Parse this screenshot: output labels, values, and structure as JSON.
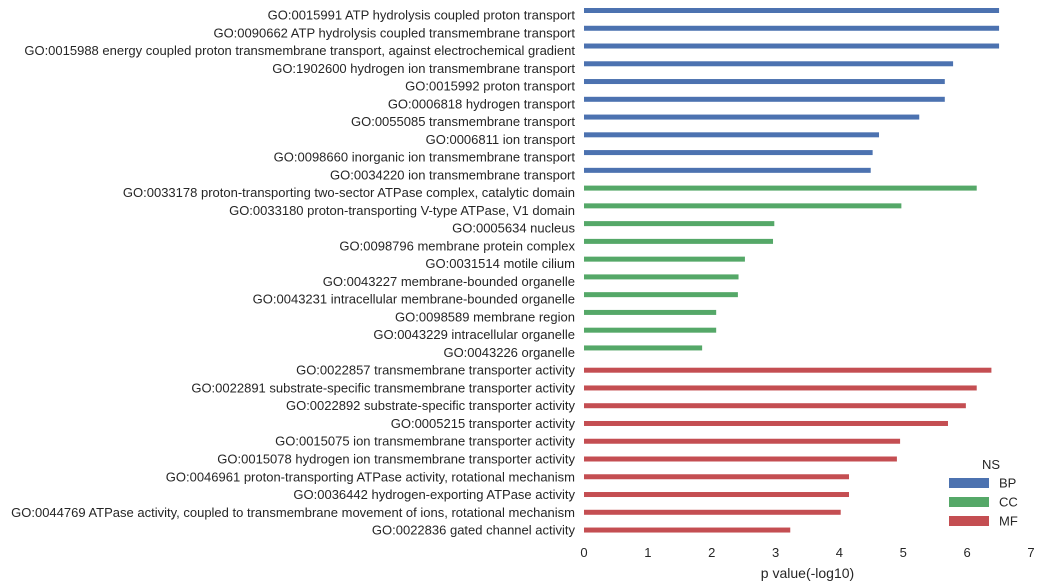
{
  "chart_data": {
    "type": "bar",
    "orientation": "horizontal",
    "xlabel": "p value(-log10)",
    "xlim": [
      0,
      7
    ],
    "xticks": [
      0,
      1,
      2,
      3,
      4,
      5,
      6,
      7
    ],
    "grid": false,
    "legend": {
      "title": "NS",
      "placement": "bottom-right",
      "entries": [
        {
          "name": "BP",
          "color": "#4c72b0"
        },
        {
          "name": "CC",
          "color": "#55a868"
        },
        {
          "name": "MF",
          "color": "#c44e52"
        }
      ]
    },
    "categories": [
      "GO:0015991 ATP hydrolysis coupled proton transport",
      "GO:0090662 ATP hydrolysis coupled transmembrane transport",
      "GO:0015988 energy coupled proton transmembrane transport, against electrochemical gradient",
      "GO:1902600 hydrogen ion transmembrane transport",
      "GO:0015992 proton transport",
      "GO:0006818 hydrogen transport",
      "GO:0055085 transmembrane transport",
      "GO:0006811 ion transport",
      "GO:0098660 inorganic ion transmembrane transport",
      "GO:0034220 ion transmembrane transport",
      "GO:0033178 proton-transporting two-sector ATPase complex, catalytic domain",
      "GO:0033180 proton-transporting V-type ATPase, V1 domain",
      "GO:0005634 nucleus",
      "GO:0098796 membrane protein complex",
      "GO:0031514 motile cilium",
      "GO:0043227 membrane-bounded organelle",
      "GO:0043231 intracellular membrane-bounded organelle",
      "GO:0098589 membrane region",
      "GO:0043229 intracellular organelle",
      "GO:0043226 organelle",
      "GO:0022857 transmembrane transporter activity",
      "GO:0022891 substrate-specific transmembrane transporter activity",
      "GO:0022892 substrate-specific transporter activity",
      "GO:0005215 transporter activity",
      "GO:0015075 ion transmembrane transporter activity",
      "GO:0015078 hydrogen ion transmembrane transporter activity",
      "GO:0046961 proton-transporting ATPase activity, rotational mechanism",
      "GO:0036442 hydrogen-exporting ATPase activity",
      "GO:0044769 ATPase activity, coupled to transmembrane movement of ions, rotational mechanism",
      "GO:0022836 gated channel activity"
    ],
    "values": [
      6.5,
      6.5,
      6.5,
      5.78,
      5.65,
      5.65,
      5.25,
      4.62,
      4.52,
      4.49,
      6.15,
      4.97,
      2.98,
      2.96,
      2.52,
      2.42,
      2.41,
      2.07,
      2.07,
      1.85,
      6.38,
      6.15,
      5.98,
      5.7,
      4.95,
      4.9,
      4.15,
      4.15,
      4.02,
      3.23
    ],
    "groups": [
      "BP",
      "BP",
      "BP",
      "BP",
      "BP",
      "BP",
      "BP",
      "BP",
      "BP",
      "BP",
      "CC",
      "CC",
      "CC",
      "CC",
      "CC",
      "CC",
      "CC",
      "CC",
      "CC",
      "CC",
      "MF",
      "MF",
      "MF",
      "MF",
      "MF",
      "MF",
      "MF",
      "MF",
      "MF",
      "MF"
    ]
  }
}
